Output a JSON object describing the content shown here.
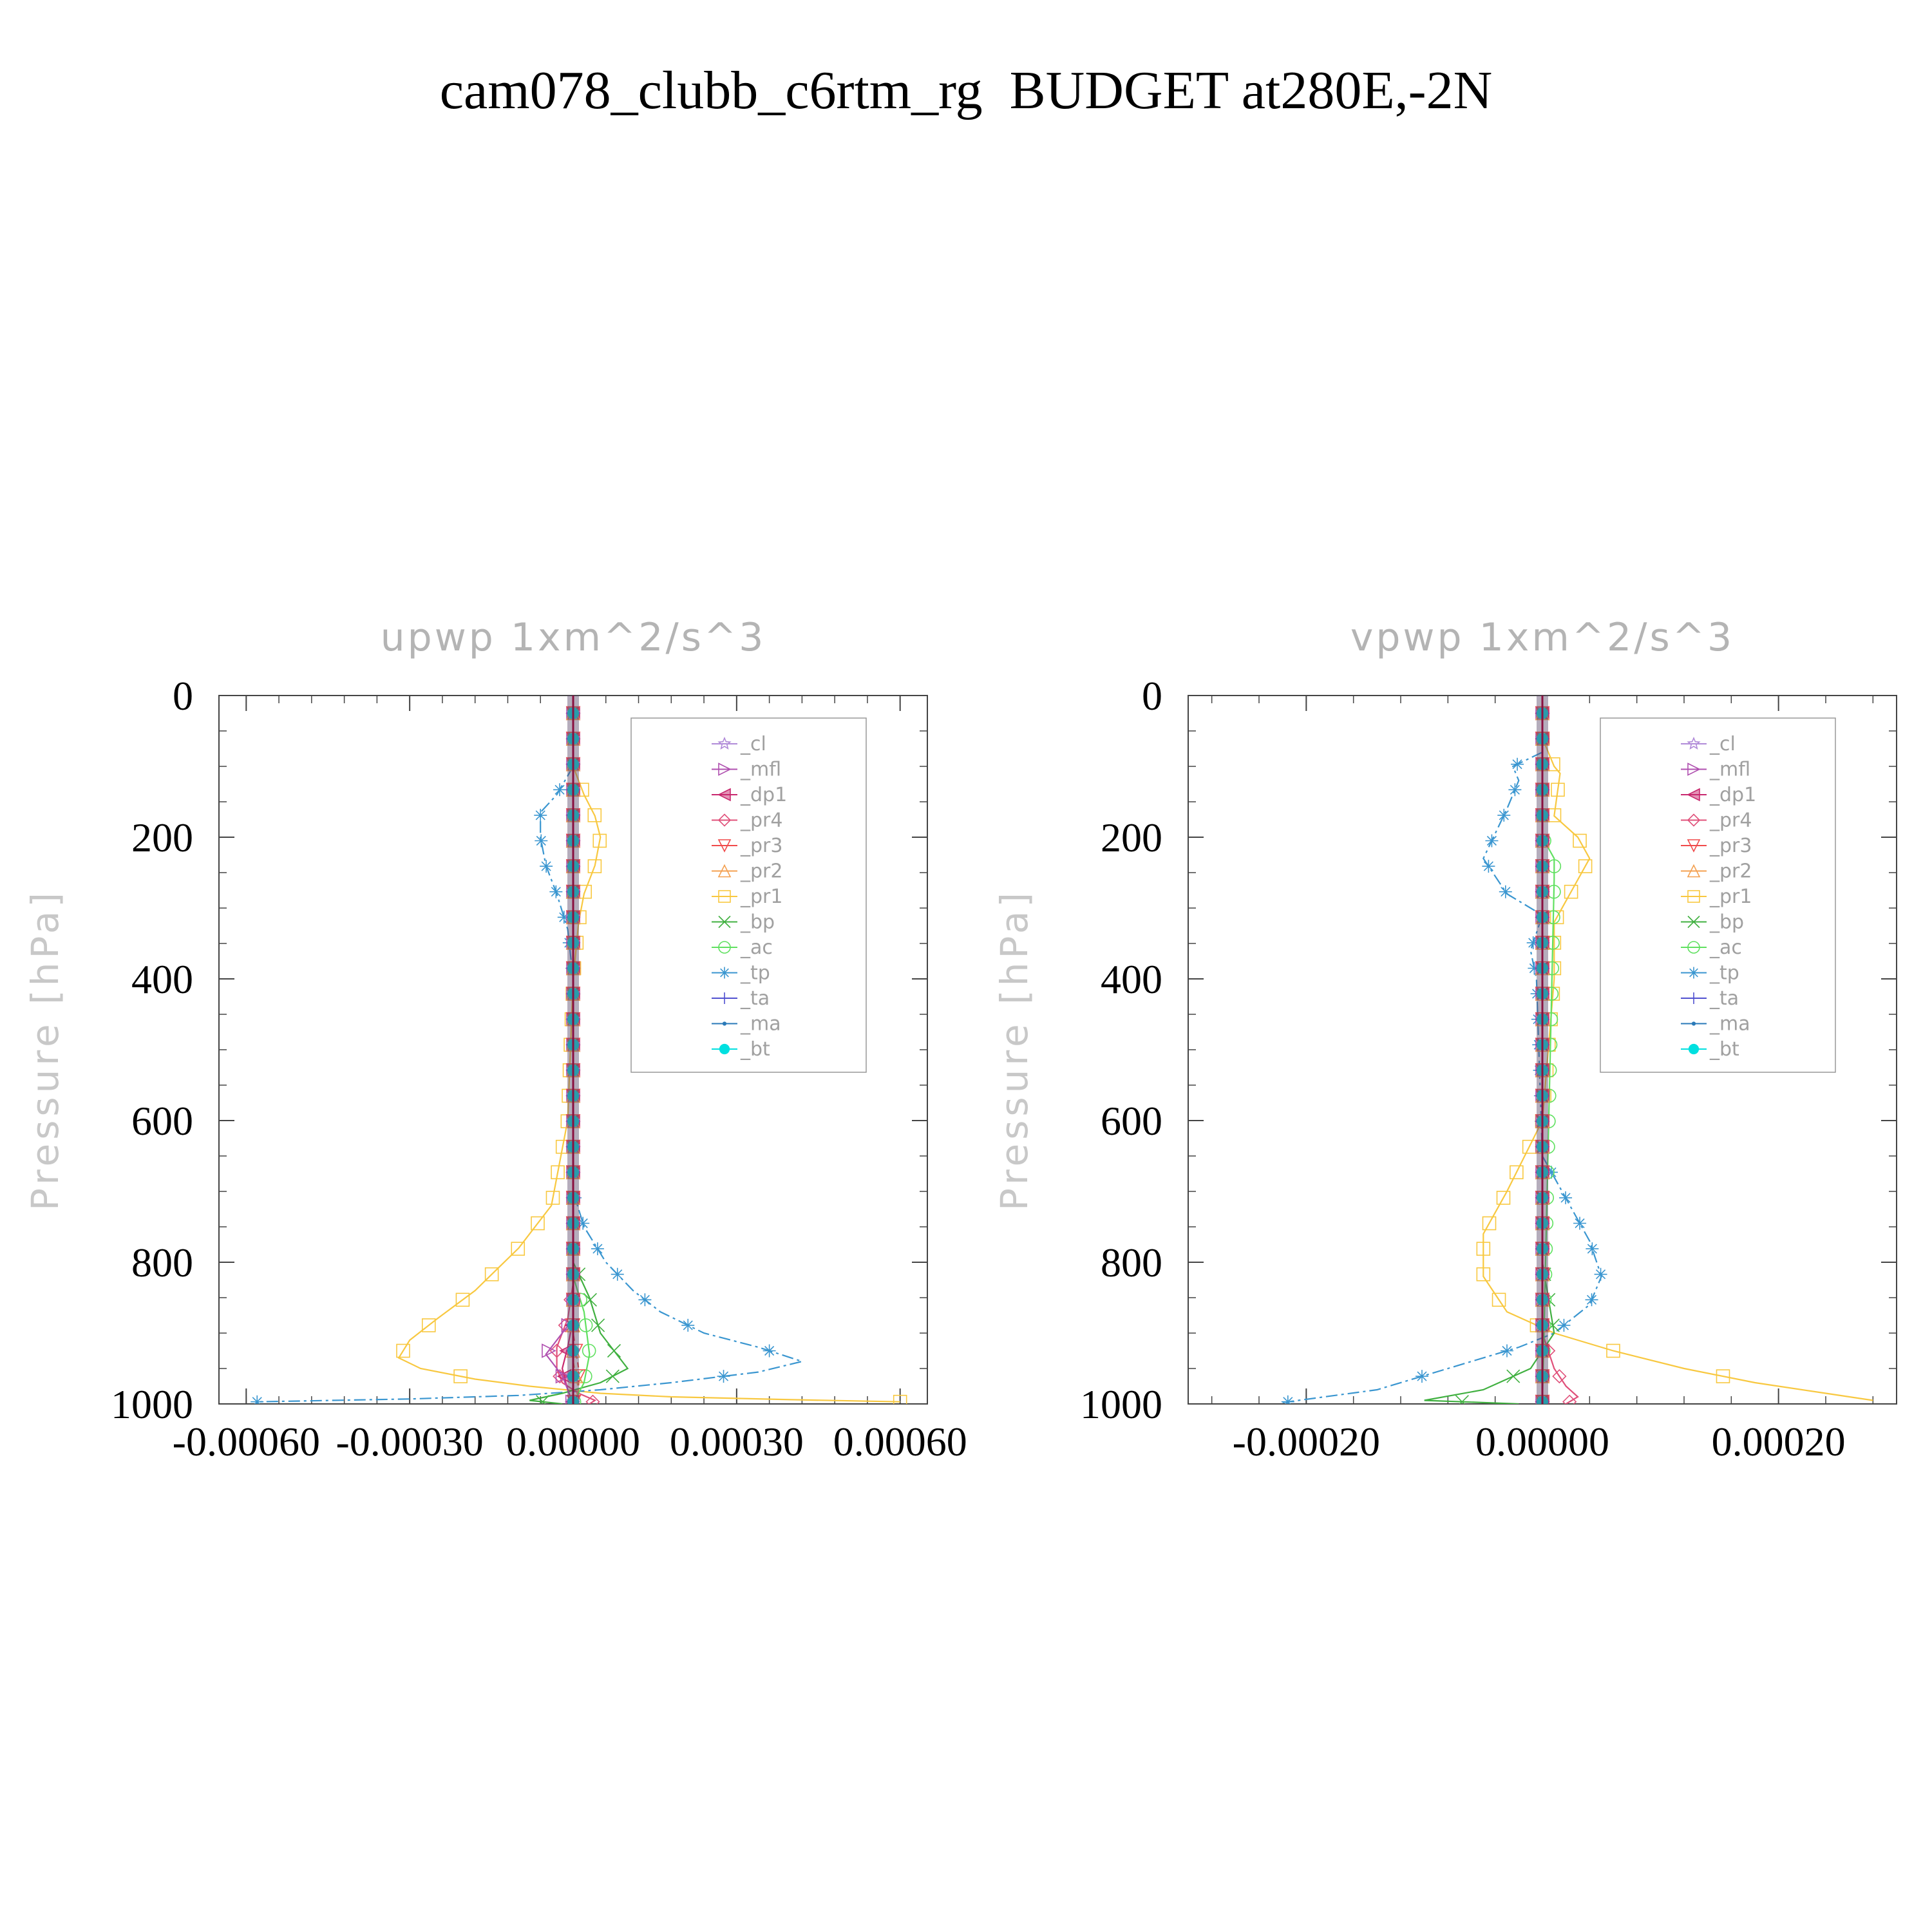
{
  "title": "cam078_clubb_c6rtm_rg  BUDGET at280E,-2N",
  "legend": [
    {
      "label": "_cl",
      "color": "#b08ad8",
      "marker": "star"
    },
    {
      "label": "_mfl",
      "color": "#b050b0",
      "marker": "tri-right"
    },
    {
      "label": "_dp1",
      "color": "#c8286e",
      "marker": "tri-left"
    },
    {
      "label": "_pr4",
      "color": "#e0507a",
      "marker": "diamond"
    },
    {
      "label": "_pr3",
      "color": "#f04a4a",
      "marker": "tri-down"
    },
    {
      "label": "_pr2",
      "color": "#f4a050",
      "marker": "tri-up"
    },
    {
      "label": "_pr1",
      "color": "#f8c840",
      "marker": "square"
    },
    {
      "label": "_bp",
      "color": "#40b040",
      "marker": "x"
    },
    {
      "label": "_ac",
      "color": "#60e060",
      "marker": "circle"
    },
    {
      "label": "_tp",
      "color": "#3a96d0",
      "marker": "asterisk"
    },
    {
      "label": "_ta",
      "color": "#5050d0",
      "marker": "plus"
    },
    {
      "label": "_ma",
      "color": "#2a7ab8",
      "marker": "dot"
    },
    {
      "label": "_bt",
      "color": "#00e0e0",
      "marker": "filled-circle"
    }
  ],
  "chart_data": [
    {
      "type": "line",
      "title": "upwp    1xm^2/s^3",
      "ylabel": "Pressure  [hPa]",
      "xlim": [
        -0.00065,
        0.00065
      ],
      "ylim": [
        1000,
        0
      ],
      "y_reversed": true,
      "xticks": [
        -0.0006,
        -0.0003,
        0.0,
        0.0003,
        0.0006
      ],
      "xtick_labels": [
        "-0.00060",
        "-0.00030",
        "0.00000",
        "0.00030",
        "0.00060"
      ],
      "yticks": [
        0,
        200,
        400,
        600,
        800,
        1000
      ],
      "ytick_labels": [
        "0",
        "200",
        "400",
        "600",
        "800",
        "1000"
      ],
      "series": [
        {
          "name": "_pr1",
          "x": [
            0,
            2e-05,
            4e-05,
            5e-05,
            4e-05,
            2e-05,
            1e-05,
            0,
            -1e-05,
            -4e-05,
            -0.0001,
            -0.00018,
            -0.00025,
            -0.0003,
            -0.00032,
            -0.00028,
            -0.00018,
            -8e-05,
            5e-05,
            0.00018,
            0.0004,
            0.0006
          ],
          "y": [
            100,
            140,
            170,
            200,
            240,
            280,
            320,
            400,
            600,
            720,
            780,
            840,
            880,
            910,
            935,
            950,
            965,
            975,
            985,
            990,
            994,
            997
          ]
        },
        {
          "name": "_tp",
          "x": [
            0,
            -3e-05,
            -6e-05,
            -6e-05,
            -5e-05,
            -3e-05,
            -1e-05,
            0,
            0,
            2e-05,
            6e-05,
            0.00011,
            0.00016,
            0.00024,
            0.00034,
            0.00042,
            0.00034,
            0.00018,
            5e-05,
            -0.0001,
            -0.0003,
            -0.00058
          ],
          "y": [
            100,
            140,
            165,
            200,
            240,
            280,
            330,
            400,
            700,
            750,
            800,
            840,
            870,
            900,
            920,
            940,
            955,
            970,
            980,
            988,
            993,
            997
          ]
        },
        {
          "name": "_bp",
          "x": [
            0,
            0,
            3e-05,
            5e-05,
            0.0001,
            5e-05,
            -2e-05,
            -8e-05,
            -2e-05
          ],
          "y": [
            0,
            800,
            850,
            900,
            950,
            970,
            985,
            995,
            1000
          ]
        },
        {
          "name": "_pr4",
          "x": [
            0,
            0,
            -1e-05,
            -3e-05,
            -3e-05,
            -2e-05,
            1e-05,
            4e-05,
            3e-05
          ],
          "y": [
            0,
            830,
            880,
            920,
            950,
            970,
            985,
            995,
            1000
          ]
        },
        {
          "name": "_ac",
          "x": [
            0,
            0,
            2e-05,
            3e-05,
            2e-05,
            0
          ],
          "y": [
            0,
            820,
            870,
            930,
            970,
            1000
          ]
        },
        {
          "name": "_dp1",
          "x": [
            0,
            0,
            -1e-05,
            -2e-05,
            -1e-05,
            0
          ],
          "y": [
            0,
            880,
            920,
            950,
            980,
            1000
          ]
        },
        {
          "name": "_mfl",
          "x": [
            0,
            0,
            -3e-05,
            -5e-05,
            -2e-05,
            0
          ],
          "y": [
            0,
            880,
            910,
            930,
            960,
            1000
          ]
        },
        {
          "name": "_pr3",
          "x": [
            0,
            0,
            1e-05,
            1e-05,
            0
          ],
          "y": [
            0,
            900,
            950,
            980,
            1000
          ]
        },
        {
          "name": "_pr2",
          "x": [
            0,
            0,
            1e-05,
            0
          ],
          "y": [
            0,
            940,
            980,
            1000
          ]
        },
        {
          "name": "_cl",
          "x": [
            0,
            0
          ],
          "y": [
            0,
            1000
          ]
        },
        {
          "name": "_ta",
          "x": [
            0,
            0
          ],
          "y": [
            0,
            1000
          ]
        },
        {
          "name": "_ma",
          "x": [
            0,
            0
          ],
          "y": [
            0,
            1000
          ]
        },
        {
          "name": "_bt",
          "x": [
            0,
            0
          ],
          "y": [
            0,
            1000
          ]
        }
      ]
    },
    {
      "type": "line",
      "title": "vpwp    1xm^2/s^3",
      "ylabel": "Pressure  [hPa]",
      "xlim": [
        -0.0003,
        0.0003
      ],
      "ylim": [
        1000,
        0
      ],
      "y_reversed": true,
      "xticks": [
        -0.0002,
        0.0,
        0.0002
      ],
      "xtick_labels": [
        "-0.00020",
        "0.00000",
        "0.00020"
      ],
      "yticks": [
        0,
        200,
        400,
        600,
        800,
        1000
      ],
      "ytick_labels": [
        "0",
        "200",
        "400",
        "600",
        "800",
        "1000"
      ],
      "series": [
        {
          "name": "_pr1",
          "x": [
            0,
            1e-05,
            1.5e-05,
            1e-05,
            3e-05,
            4e-05,
            3e-05,
            1e-05,
            1e-05,
            0,
            -3e-05,
            -5e-05,
            -5e-05,
            -3e-05,
            1e-05,
            6e-05,
            0.00012,
            0.00018,
            0.00024,
            0.00028
          ],
          "y": [
            60,
            100,
            110,
            170,
            200,
            230,
            260,
            320,
            400,
            600,
            700,
            760,
            820,
            870,
            900,
            925,
            950,
            970,
            985,
            995
          ]
        },
        {
          "name": "_tp",
          "x": [
            0,
            -2.5e-05,
            -2e-05,
            -3e-05,
            -5e-05,
            -3e-05,
            0,
            -1e-05,
            -5e-06,
            0,
            2e-05,
            4e-05,
            5e-05,
            4e-05,
            1e-05,
            -2e-05,
            -6e-05,
            -0.0001,
            -0.00014,
            -0.00022
          ],
          "y": [
            80,
            100,
            120,
            160,
            230,
            280,
            310,
            360,
            400,
            650,
            710,
            770,
            820,
            860,
            900,
            920,
            940,
            960,
            980,
            998
          ]
        },
        {
          "name": "_bp",
          "x": [
            0,
            0,
            1e-05,
            -1e-05,
            -5e-05,
            -0.0001,
            -2e-05
          ],
          "y": [
            0,
            800,
            900,
            950,
            980,
            995,
            1000
          ]
        },
        {
          "name": "_pr4",
          "x": [
            0,
            0,
            1e-05,
            2e-05,
            3e-05,
            2e-05
          ],
          "y": [
            0,
            900,
            950,
            975,
            990,
            1000
          ]
        },
        {
          "name": "_ac",
          "x": [
            0,
            0,
            1e-05,
            1e-05,
            0
          ],
          "y": [
            0,
            200,
            230,
            260,
            1000
          ]
        },
        {
          "name": "_cl",
          "x": [
            0,
            0
          ],
          "y": [
            0,
            1000
          ]
        },
        {
          "name": "_mfl",
          "x": [
            0,
            0
          ],
          "y": [
            0,
            1000
          ]
        },
        {
          "name": "_dp1",
          "x": [
            0,
            0
          ],
          "y": [
            0,
            1000
          ]
        },
        {
          "name": "_pr3",
          "x": [
            0,
            0
          ],
          "y": [
            0,
            1000
          ]
        },
        {
          "name": "_pr2",
          "x": [
            0,
            0
          ],
          "y": [
            0,
            1000
          ]
        },
        {
          "name": "_ta",
          "x": [
            0,
            0
          ],
          "y": [
            0,
            1000
          ]
        },
        {
          "name": "_ma",
          "x": [
            0,
            0
          ],
          "y": [
            0,
            1000
          ]
        },
        {
          "name": "_bt",
          "x": [
            0,
            0
          ],
          "y": [
            0,
            1000
          ]
        }
      ]
    }
  ]
}
